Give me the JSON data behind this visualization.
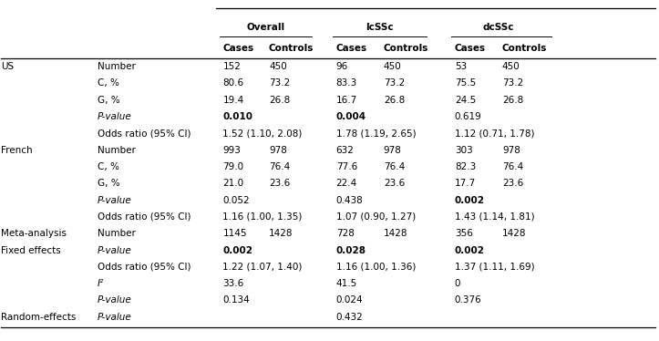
{
  "rows": [
    {
      "group": "US",
      "label": "Number",
      "italic": false,
      "vals": [
        "152",
        "450",
        "96",
        "450",
        "53",
        "450"
      ],
      "bold": [
        false,
        false,
        false,
        false,
        false,
        false
      ],
      "spanning": false
    },
    {
      "group": "",
      "label": "C, %",
      "italic": false,
      "vals": [
        "80.6",
        "73.2",
        "83.3",
        "73.2",
        "75.5",
        "73.2"
      ],
      "bold": [
        false,
        false,
        false,
        false,
        false,
        false
      ],
      "spanning": false
    },
    {
      "group": "",
      "label": "G, %",
      "italic": false,
      "vals": [
        "19.4",
        "26.8",
        "16.7",
        "26.8",
        "24.5",
        "26.8"
      ],
      "bold": [
        false,
        false,
        false,
        false,
        false,
        false
      ],
      "spanning": false
    },
    {
      "group": "",
      "label": "P-value",
      "italic": true,
      "vals": [
        "0.010",
        "",
        "0.004",
        "",
        "0.619",
        ""
      ],
      "bold": [
        true,
        false,
        true,
        false,
        false,
        false
      ],
      "spanning": true
    },
    {
      "group": "",
      "label": "Odds ratio (95% CI)",
      "italic": false,
      "vals": [
        "1.52 (1.10, 2.08)",
        "",
        "1.78 (1.19, 2.65)",
        "",
        "1.12 (0.71, 1.78)",
        ""
      ],
      "bold": [
        false,
        false,
        false,
        false,
        false,
        false
      ],
      "spanning": true
    },
    {
      "group": "French",
      "label": "Number",
      "italic": false,
      "vals": [
        "993",
        "978",
        "632",
        "978",
        "303",
        "978"
      ],
      "bold": [
        false,
        false,
        false,
        false,
        false,
        false
      ],
      "spanning": false
    },
    {
      "group": "",
      "label": "C, %",
      "italic": false,
      "vals": [
        "79.0",
        "76.4",
        "77.6",
        "76.4",
        "82.3",
        "76.4"
      ],
      "bold": [
        false,
        false,
        false,
        false,
        false,
        false
      ],
      "spanning": false
    },
    {
      "group": "",
      "label": "G, %",
      "italic": false,
      "vals": [
        "21.0",
        "23.6",
        "22.4",
        "23.6",
        "17.7",
        "23.6"
      ],
      "bold": [
        false,
        false,
        false,
        false,
        false,
        false
      ],
      "spanning": false
    },
    {
      "group": "",
      "label": "P-value",
      "italic": true,
      "vals": [
        "0.052",
        "",
        "0.438",
        "",
        "0.002",
        ""
      ],
      "bold": [
        false,
        false,
        false,
        false,
        true,
        false
      ],
      "spanning": true
    },
    {
      "group": "",
      "label": "Odds ratio (95% CI)",
      "italic": false,
      "vals": [
        "1.16 (1.00, 1.35)",
        "",
        "1.07 (0.90, 1.27)",
        "",
        "1.43 (1.14, 1.81)",
        ""
      ],
      "bold": [
        false,
        false,
        false,
        false,
        false,
        false
      ],
      "spanning": true
    },
    {
      "group": "Meta-analysis",
      "label": "Number",
      "italic": false,
      "vals": [
        "1145",
        "1428",
        "728",
        "1428",
        "356",
        "1428"
      ],
      "bold": [
        false,
        false,
        false,
        false,
        false,
        false
      ],
      "spanning": false
    },
    {
      "group": "Fixed effects",
      "label": "P-value",
      "italic": true,
      "vals": [
        "0.002",
        "",
        "0.028",
        "",
        "0.002",
        ""
      ],
      "bold": [
        true,
        false,
        true,
        false,
        true,
        false
      ],
      "spanning": true
    },
    {
      "group": "",
      "label": "Odds ratio (95% CI)",
      "italic": false,
      "vals": [
        "1.22 (1.07, 1.40)",
        "",
        "1.16 (1.00, 1.36)",
        "",
        "1.37 (1.11, 1.69)",
        ""
      ],
      "bold": [
        false,
        false,
        false,
        false,
        false,
        false
      ],
      "spanning": true
    },
    {
      "group": "",
      "label": "I²",
      "italic": true,
      "vals": [
        "33.6",
        "",
        "41.5",
        "",
        "0",
        ""
      ],
      "bold": [
        false,
        false,
        false,
        false,
        false,
        false
      ],
      "spanning": true
    },
    {
      "group": "",
      "label": "P-value",
      "italic": true,
      "vals": [
        "0.134",
        "",
        "0.024",
        "",
        "0.376",
        ""
      ],
      "bold": [
        false,
        false,
        false,
        false,
        false,
        false
      ],
      "spanning": true
    },
    {
      "group": "Random-effects",
      "label": "P-value",
      "italic": true,
      "vals": [
        "",
        "",
        "0.432",
        "",
        "",
        ""
      ],
      "bold": [
        false,
        false,
        false,
        false,
        false,
        false
      ],
      "spanning": true
    }
  ],
  "col_group_labels": [
    "Overall",
    "lcSSc",
    "dcSSc"
  ],
  "sub_col_labels": [
    "Cases",
    "Controls",
    "Cases",
    "Controls",
    "Cases",
    "Controls"
  ],
  "fontsize": 7.5,
  "header_fontsize": 7.5
}
